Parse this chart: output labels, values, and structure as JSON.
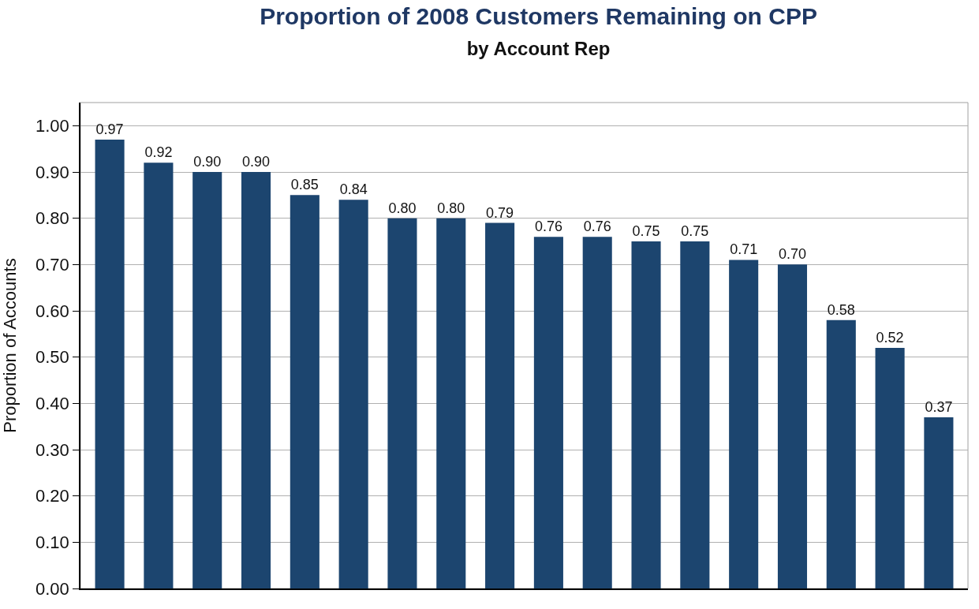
{
  "chart_data": {
    "type": "bar",
    "title": "Proportion of 2008 Customers Remaining on CPP",
    "subtitle": "by Account Rep",
    "ylabel": "Proportion of Accounts",
    "categories": [
      null,
      null,
      null,
      null,
      null,
      null,
      null,
      null,
      null,
      null,
      null,
      null,
      null,
      null,
      null,
      null,
      null,
      null
    ],
    "values": [
      0.97,
      0.92,
      0.9,
      0.9,
      0.85,
      0.84,
      0.8,
      0.8,
      0.79,
      0.76,
      0.76,
      0.75,
      0.75,
      0.71,
      0.7,
      0.58,
      0.52,
      0.37
    ],
    "value_labels": [
      "0.97",
      "0.92",
      "0.90",
      "0.90",
      "0.85",
      "0.84",
      "0.80",
      "0.80",
      "0.79",
      "0.76",
      "0.76",
      "0.75",
      "0.75",
      "0.71",
      "0.70",
      "0.58",
      "0.52",
      "0.37"
    ],
    "color": "#1c456f",
    "ylim": [
      0,
      1.05
    ],
    "yticks": [
      {
        "value": 0,
        "label": "0.00"
      },
      {
        "value": 0.1,
        "label": "0.10"
      },
      {
        "value": 0.2,
        "label": "0.20"
      },
      {
        "value": 0.3,
        "label": "0.30"
      },
      {
        "value": 0.4,
        "label": "0.40"
      },
      {
        "value": 0.5,
        "label": "0.50"
      },
      {
        "value": 0.6,
        "label": "0.60"
      },
      {
        "value": 0.7,
        "label": "0.70"
      },
      {
        "value": 0.8,
        "label": "0.80"
      },
      {
        "value": 0.9,
        "label": "0.90"
      },
      {
        "value": 1.0,
        "label": "1.00"
      }
    ],
    "grid": "y",
    "legend": false,
    "tick_labels": "y"
  }
}
